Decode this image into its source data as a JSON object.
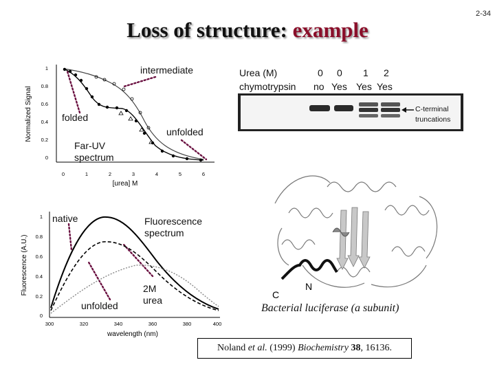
{
  "slide": {
    "title_main": "Loss of structure: ",
    "title_highlight": "example",
    "number": "2-34"
  },
  "top_chart": {
    "ylabel": "Normalized Signal",
    "xlabel": "[urea] M",
    "yticks": [
      "1",
      "0.8",
      "0.6",
      "0.4",
      "0.2",
      "0"
    ],
    "xticks": [
      "0",
      "1",
      "2",
      "3",
      "4",
      "5",
      "6"
    ],
    "annotations": {
      "intermediate": "intermediate",
      "folded": "folded",
      "unfolded": "unfolded",
      "far_uv_line1": "Far-UV",
      "far_uv_line2": "spectrum"
    }
  },
  "bottom_chart": {
    "ylabel": "Fluorescence (A.U.)",
    "xlabel": "wavelength (nm)",
    "yticks": [
      "1",
      "0.8",
      "0.6",
      "0.4",
      "0.2",
      "0"
    ],
    "xticks": [
      "300",
      "320",
      "340",
      "360",
      "380",
      "400"
    ],
    "annotations": {
      "native": "native",
      "unfolded": "unfolded",
      "fluorescence_line1": "Fluorescence",
      "fluorescence_line2": "spectrum",
      "urea_line1": "2M",
      "urea_line2": "urea"
    }
  },
  "gel": {
    "urea_label": "Urea (M)",
    "urea_values": [
      "0",
      "0",
      "1",
      "2"
    ],
    "protease_label": "chymotrypsin",
    "protease_values": [
      "no",
      "Yes",
      "Yes",
      "Yes"
    ],
    "band_label_line1": "C-terminal",
    "band_label_line2": "truncations"
  },
  "structure": {
    "c_label": "C",
    "n_label": "N",
    "caption": "Bacterial luciferase (a subunit)"
  },
  "reference": {
    "authors": "Noland",
    "etal": "et al.",
    "year": "(1999)",
    "journal": "Biochemistry",
    "volume": "38",
    "pages": ", 16136."
  }
}
